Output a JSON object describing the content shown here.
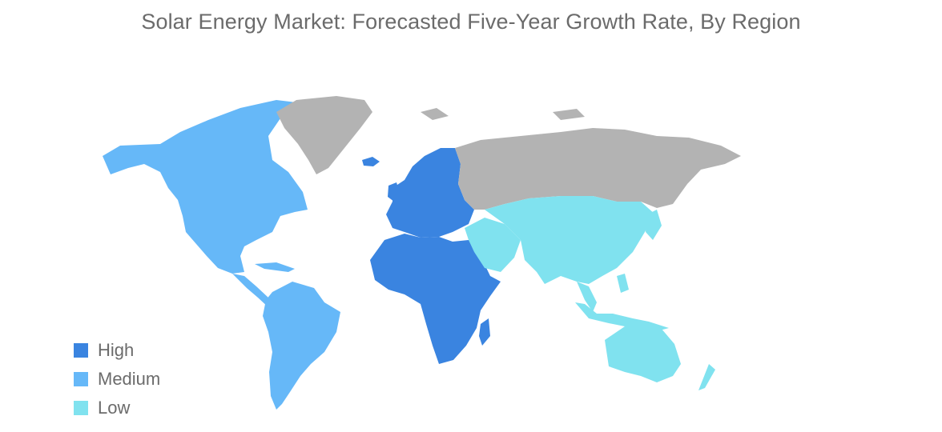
{
  "title": "Solar Energy Market: Forecasted Five-Year Growth Rate, By Region",
  "colors": {
    "high": "#3a84e0",
    "medium": "#66b8f8",
    "low": "#80e2ef",
    "no_data": "#b3b3b3"
  },
  "legend": [
    {
      "label": "High",
      "color": "#3a84e0"
    },
    {
      "label": "Medium",
      "color": "#66b8f8"
    },
    {
      "label": "Low",
      "color": "#80e2ef"
    }
  ],
  "regions": [
    {
      "name": "North America",
      "level": "Medium"
    },
    {
      "name": "South America",
      "level": "Medium"
    },
    {
      "name": "Europe",
      "level": "High"
    },
    {
      "name": "Africa",
      "level": "High"
    },
    {
      "name": "Asia-Pacific",
      "level": "Low"
    },
    {
      "name": "Middle East",
      "level": "Low"
    }
  ]
}
